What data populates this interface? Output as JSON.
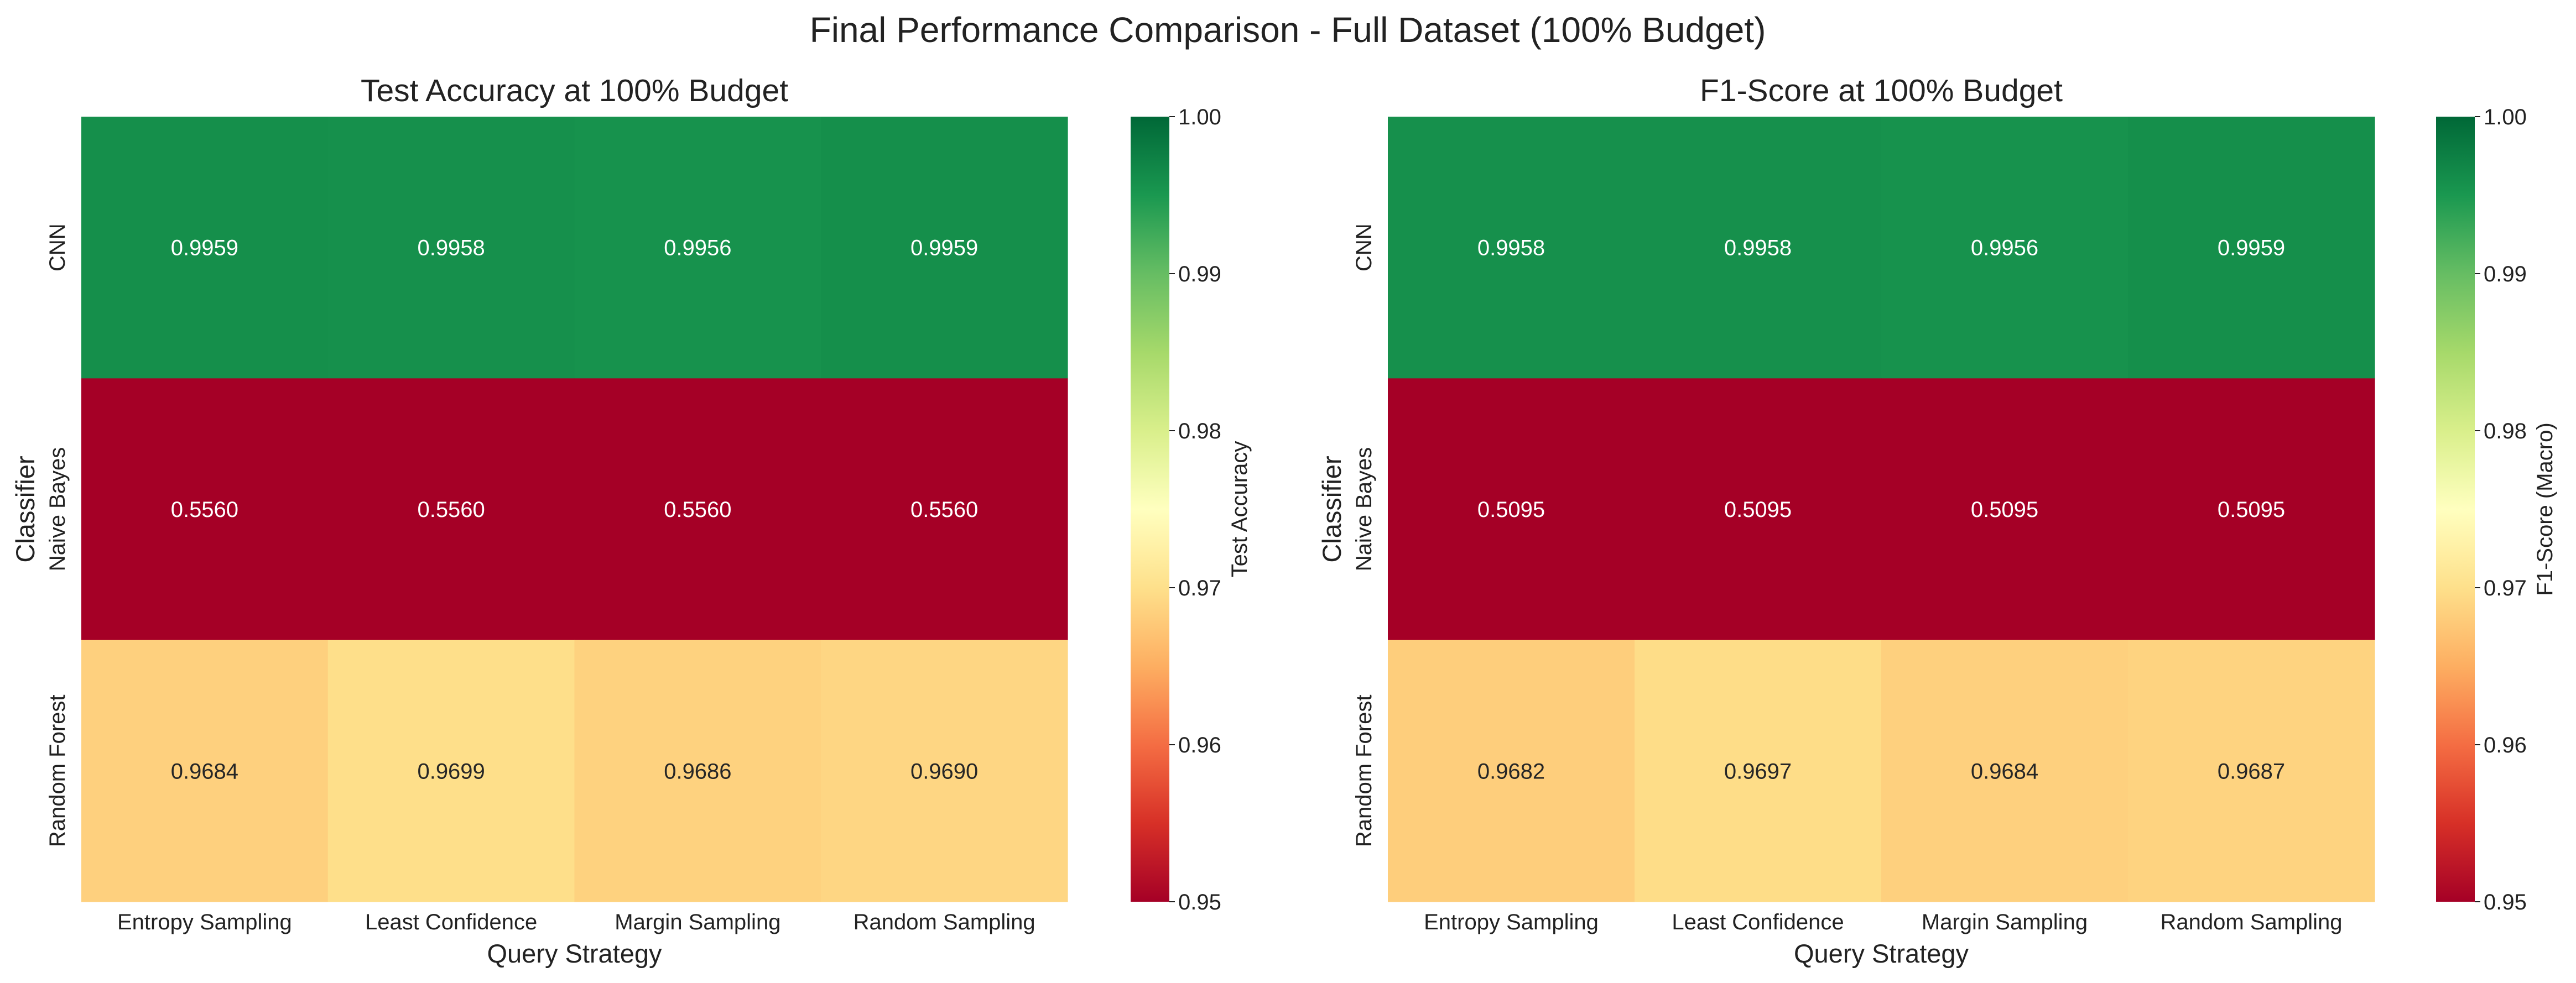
{
  "title": "Final Performance Comparison - Full Dataset (100% Budget)",
  "chart_data": [
    {
      "type": "heatmap",
      "title": "Test Accuracy at 100% Budget",
      "xlabel": "Query Strategy",
      "ylabel": "Classifier",
      "x_categories": [
        "Entropy Sampling",
        "Least Confidence",
        "Margin Sampling",
        "Random Sampling"
      ],
      "y_categories": [
        "CNN",
        "Naive Bayes",
        "Random Forest"
      ],
      "values": [
        [
          0.9959,
          0.9958,
          0.9956,
          0.9959
        ],
        [
          0.556,
          0.556,
          0.556,
          0.556
        ],
        [
          0.9684,
          0.9699,
          0.9686,
          0.969
        ]
      ],
      "value_labels": [
        [
          "0.9959",
          "0.9958",
          "0.9956",
          "0.9959"
        ],
        [
          "0.5560",
          "0.5560",
          "0.5560",
          "0.5560"
        ],
        [
          "0.9684",
          "0.9699",
          "0.9686",
          "0.9690"
        ]
      ],
      "colormap": "RdYlGn",
      "vmin": 0.95,
      "vmax": 1.0,
      "colorbar_label": "Test Accuracy",
      "colorbar_ticks": [
        "0.95",
        "0.96",
        "0.97",
        "0.98",
        "0.99",
        "1.00"
      ]
    },
    {
      "type": "heatmap",
      "title": "F1-Score at 100% Budget",
      "xlabel": "Query Strategy",
      "ylabel": "Classifier",
      "x_categories": [
        "Entropy Sampling",
        "Least Confidence",
        "Margin Sampling",
        "Random Sampling"
      ],
      "y_categories": [
        "CNN",
        "Naive Bayes",
        "Random Forest"
      ],
      "values": [
        [
          0.9958,
          0.9958,
          0.9956,
          0.9959
        ],
        [
          0.5095,
          0.5095,
          0.5095,
          0.5095
        ],
        [
          0.9682,
          0.9697,
          0.9684,
          0.9687
        ]
      ],
      "value_labels": [
        [
          "0.9958",
          "0.9958",
          "0.9956",
          "0.9959"
        ],
        [
          "0.5095",
          "0.5095",
          "0.5095",
          "0.5095"
        ],
        [
          "0.9682",
          "0.9697",
          "0.9684",
          "0.9687"
        ]
      ],
      "colormap": "RdYlGn",
      "vmin": 0.95,
      "vmax": 1.0,
      "colorbar_label": "F1-Score (Macro)",
      "colorbar_ticks": [
        "0.95",
        "0.96",
        "0.97",
        "0.98",
        "0.99",
        "1.00"
      ]
    }
  ]
}
